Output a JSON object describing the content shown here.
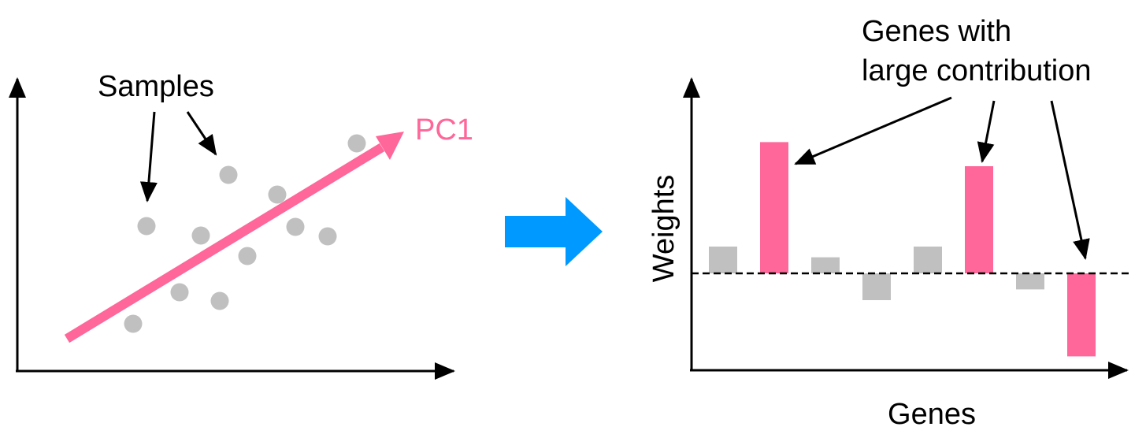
{
  "left_panel": {
    "samples_label": "Samples",
    "pc_label": "PC1",
    "sample_count": 12
  },
  "right_panel": {
    "title_line1": "Genes with",
    "title_line2": "large contribution",
    "y_axis_label": "Weights",
    "x_axis_label": "Genes",
    "baseline_style": "dashed"
  },
  "colors": {
    "pink": "#ff6699",
    "gray": "#c0c0c0",
    "blue_arrow": "#0099ff",
    "black": "#000000"
  },
  "chart_data": {
    "type": "bar",
    "categories": [
      "",
      "",
      "",
      "",
      "",
      "",
      "",
      ""
    ],
    "values": [
      1.0,
      4.9,
      0.6,
      -1.0,
      1.0,
      4.0,
      -0.6,
      -3.1
    ],
    "highlighted": [
      false,
      true,
      false,
      false,
      false,
      true,
      false,
      true
    ],
    "title": "",
    "xlabel": "Genes",
    "ylabel": "Weights",
    "ylim": [
      -3.6,
      6.5
    ],
    "grid": false,
    "legend": "none"
  }
}
